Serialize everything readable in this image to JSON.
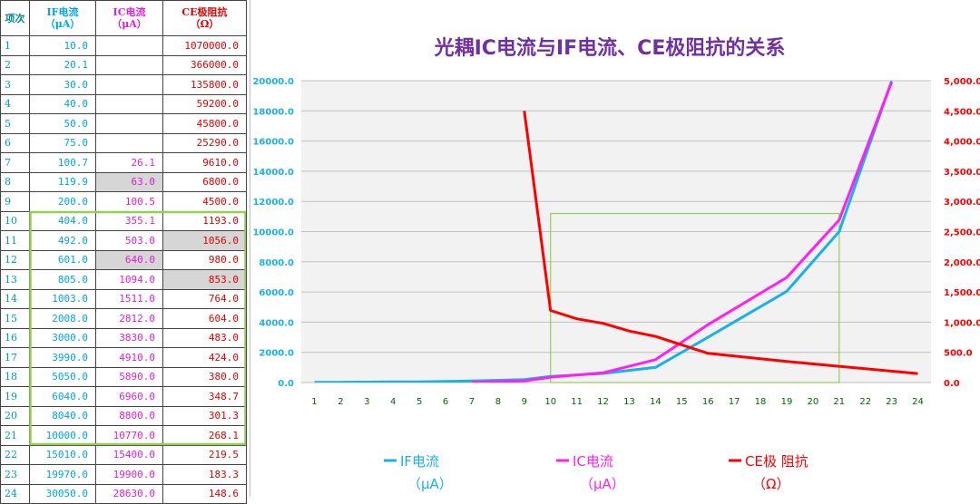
{
  "table": {
    "headers": {
      "idx": "项次",
      "if_line1": "IF电流",
      "if_line2": "（μA）",
      "ic_line1": "IC电流",
      "ic_line2": "（μA）",
      "ce_line1": "CE极阻抗",
      "ce_line2": "（Ω）"
    },
    "rows": [
      {
        "idx": "1",
        "if": "10.0",
        "ic": "",
        "ce": "1070000.0"
      },
      {
        "idx": "2",
        "if": "20.1",
        "ic": "",
        "ce": "366000.0"
      },
      {
        "idx": "3",
        "if": "30.0",
        "ic": "",
        "ce": "135800.0"
      },
      {
        "idx": "4",
        "if": "40.0",
        "ic": "",
        "ce": "59200.0"
      },
      {
        "idx": "5",
        "if": "50.0",
        "ic": "",
        "ce": "45800.0"
      },
      {
        "idx": "6",
        "if": "75.0",
        "ic": "",
        "ce": "25290.0"
      },
      {
        "idx": "7",
        "if": "100.7",
        "ic": "26.1",
        "ce": "9610.0"
      },
      {
        "idx": "8",
        "if": "119.9",
        "ic": "63.0",
        "ce": "6800.0"
      },
      {
        "idx": "9",
        "if": "200.0",
        "ic": "100.5",
        "ce": "4500.0"
      },
      {
        "idx": "10",
        "if": "404.0",
        "ic": "355.1",
        "ce": "1193.0"
      },
      {
        "idx": "11",
        "if": "492.0",
        "ic": "503.0",
        "ce": "1056.0"
      },
      {
        "idx": "12",
        "if": "601.0",
        "ic": "640.0",
        "ce": "980.0"
      },
      {
        "idx": "13",
        "if": "805.0",
        "ic": "1094.0",
        "ce": "853.0"
      },
      {
        "idx": "14",
        "if": "1003.0",
        "ic": "1511.0",
        "ce": "764.0"
      },
      {
        "idx": "15",
        "if": "2008.0",
        "ic": "2812.0",
        "ce": "604.0"
      },
      {
        "idx": "16",
        "if": "3000.0",
        "ic": "3830.0",
        "ce": "483.0"
      },
      {
        "idx": "17",
        "if": "3990.0",
        "ic": "4910.0",
        "ce": "424.0"
      },
      {
        "idx": "18",
        "if": "5050.0",
        "ic": "5890.0",
        "ce": "380.0"
      },
      {
        "idx": "19",
        "if": "6040.0",
        "ic": "6960.0",
        "ce": "348.7"
      },
      {
        "idx": "20",
        "if": "8040.0",
        "ic": "8800.0",
        "ce": "301.3"
      },
      {
        "idx": "21",
        "if": "10000.0",
        "ic": "10770.0",
        "ce": "268.1"
      },
      {
        "idx": "22",
        "if": "15010.0",
        "ic": "15400.0",
        "ce": "219.5"
      },
      {
        "idx": "23",
        "if": "19970.0",
        "ic": "19900.0",
        "ce": "183.3"
      },
      {
        "idx": "24",
        "if": "30050.0",
        "ic": "28630.0",
        "ce": "148.6"
      }
    ],
    "gray_cells": [
      [
        "8",
        "ic"
      ],
      [
        "11",
        "ce"
      ],
      [
        "12",
        "ic"
      ],
      [
        "13",
        "ce"
      ]
    ],
    "highlight_rows": [
      "10",
      "21"
    ]
  },
  "chart_data": {
    "type": "line",
    "title": "光耦IC电流与IF电流、CE极阻抗的关系",
    "categories": [
      "1",
      "2",
      "3",
      "4",
      "5",
      "6",
      "7",
      "8",
      "9",
      "10",
      "11",
      "12",
      "13",
      "14",
      "15",
      "16",
      "17",
      "18",
      "19",
      "20",
      "21",
      "22",
      "23",
      "24"
    ],
    "x_values": [
      1,
      2,
      3,
      4,
      5,
      6,
      7,
      9,
      10,
      12,
      14,
      16,
      19,
      21,
      23
    ],
    "y_left": {
      "min": 0,
      "max": 20000,
      "ticks": [
        "0.0",
        "2000.0",
        "4000.0",
        "6000.0",
        "8000.0",
        "10000.0",
        "12000.0",
        "14000.0",
        "16000.0",
        "18000.0",
        "20000.0"
      ]
    },
    "y_right": {
      "min": 0,
      "max": 5000,
      "ticks": [
        "0.0",
        "500.0",
        "1,000.0",
        "1,500.0",
        "2,000.0",
        "2,500.0",
        "3,000.0",
        "3,500.0",
        "4,000.0",
        "4,500.0",
        "5,000.0"
      ]
    },
    "series": [
      {
        "name": "IF电流（μA）",
        "axis": "left",
        "color": "#1ab0e8",
        "x": [
          1,
          2,
          3,
          4,
          5,
          6,
          7,
          9,
          10,
          12,
          14,
          16,
          19,
          21,
          23
        ],
        "values": [
          10,
          20.1,
          30,
          40,
          50,
          75,
          100.7,
          200,
          404,
          601,
          1003,
          3000,
          6040,
          10000,
          19970
        ]
      },
      {
        "name": "IC电流（μA）",
        "axis": "left",
        "color": "#ff20f0",
        "x": [
          7,
          9,
          10,
          12,
          14,
          16,
          19,
          21,
          23
        ],
        "values": [
          26.1,
          100.5,
          355.1,
          640,
          1511,
          3830,
          6960,
          10770,
          19900
        ]
      },
      {
        "name": "CE极 阻抗（Ω）",
        "axis": "right",
        "color": "#ff0000",
        "x": [
          9,
          10,
          11,
          12,
          13,
          14,
          16,
          19,
          21,
          24
        ],
        "values": [
          4500,
          1193,
          1056,
          980,
          853,
          764,
          483,
          348.7,
          268.1,
          148.6
        ]
      }
    ],
    "legend": [
      {
        "line1": "IF电流",
        "line2": "（μA）",
        "color": "#1ab0e8"
      },
      {
        "line1": "IC电流",
        "line2": "（μA）",
        "color": "#ff20f0"
      },
      {
        "line1": "CE极 阻抗",
        "line2": "（Ω）",
        "color": "#ff0000"
      }
    ],
    "highlight_box": {
      "x_from": 10,
      "x_to": 21,
      "y_from": 0,
      "y_to": 11200
    },
    "colors": {
      "plot_bg": "#f2f2f2",
      "grid": "#c0c0c0",
      "left_tick": "#1ab0e8",
      "right_tick": "#ff0000",
      "x_tick": "#006400",
      "title": "#7030a0",
      "highlight": "#92d050"
    }
  }
}
